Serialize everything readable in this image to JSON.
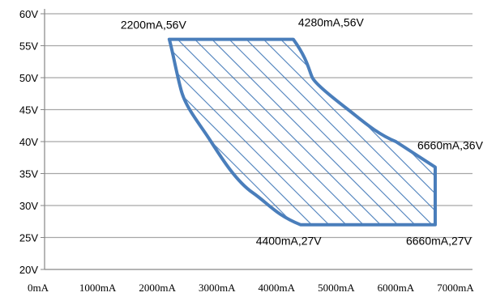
{
  "chart_data": {
    "type": "area",
    "title": "",
    "xlabel": "",
    "ylabel": "",
    "xlim": [
      0,
      7000
    ],
    "ylim": [
      20,
      60
    ],
    "x_ticks": [
      0,
      1000,
      2000,
      3000,
      4000,
      5000,
      6000,
      7000
    ],
    "x_tick_labels": [
      "0mA",
      "1000mA",
      "2000mA",
      "3000mA",
      "4000mA",
      "5000mA",
      "6000mA",
      "7000mA"
    ],
    "y_ticks": [
      20,
      25,
      30,
      35,
      40,
      45,
      50,
      55,
      60
    ],
    "y_tick_labels": [
      "20V",
      "25V",
      "30V",
      "35V",
      "40V",
      "45V",
      "50V",
      "55V",
      "60V"
    ],
    "grid": "horizontal",
    "legend": "none",
    "fill_pattern": "diagonal-hatch",
    "color": "#4a7ebb",
    "region": {
      "x": [
        2200,
        4280,
        4600,
        5200,
        6000,
        6660,
        6660,
        4400,
        3600,
        2900,
        2400,
        2200
      ],
      "y": [
        56,
        56,
        50,
        45,
        40,
        36,
        27,
        27,
        32,
        40,
        48,
        56
      ]
    },
    "annotations": [
      {
        "text": "2200mA,56V",
        "x": 2200,
        "y": 56
      },
      {
        "text": "4280mA,56V",
        "x": 4280,
        "y": 56
      },
      {
        "text": "6660mA,36V",
        "x": 6660,
        "y": 36
      },
      {
        "text": "4400mA,27V",
        "x": 4400,
        "y": 27
      },
      {
        "text": "6660mA,27V",
        "x": 6660,
        "y": 27
      }
    ]
  }
}
